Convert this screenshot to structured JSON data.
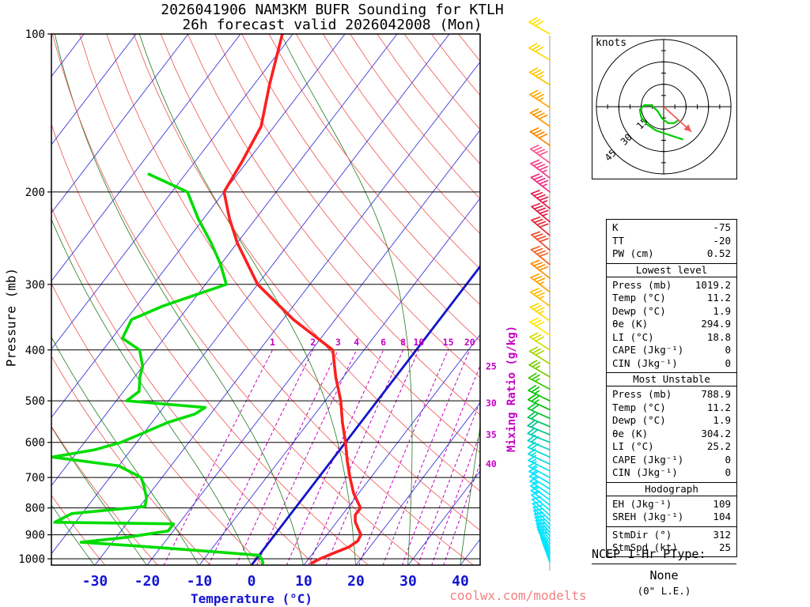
{
  "meta": {
    "model": "NAM3KM",
    "station": "KTLH",
    "init": "2026041906",
    "valid": "2026042008",
    "forecast_hour": "26h",
    "valid_day": "Mon"
  },
  "title": {
    "line1": "2026041906 NAM3KM BUFR Sounding for KTLH",
    "line2": "26h forecast valid 2026042008 (Mon)"
  },
  "axes": {
    "pressure_label": "Pressure (mb)",
    "temperature_label": "Temperature (°C)",
    "mixing_ratio_label": "Mixing Ratio (g/kg)",
    "pressure_ticks": [
      100,
      200,
      300,
      400,
      500,
      600,
      700,
      800,
      900,
      1000
    ],
    "temperature_ticks": [
      -30,
      -20,
      -10,
      0,
      10,
      20,
      30,
      40
    ]
  },
  "hodograph": {
    "units_label": "knots",
    "ring_labels": [
      15,
      30,
      45
    ]
  },
  "stats_panel": {
    "sections": [
      {
        "header": null,
        "rows": [
          [
            "K",
            "-75"
          ],
          [
            "TT",
            "-20"
          ],
          [
            "PW (cm)",
            "0.52"
          ]
        ]
      },
      {
        "header": "Lowest level",
        "rows": [
          [
            "Press (mb)",
            "1019.2"
          ],
          [
            "Temp (°C)",
            "11.2"
          ],
          [
            "Dewp (°C)",
            "1.9"
          ],
          [
            "θe (K)",
            "294.9"
          ],
          [
            "LI (°C)",
            "18.8"
          ],
          [
            "CAPE (Jkg⁻¹)",
            "0"
          ],
          [
            "CIN (Jkg⁻¹)",
            "0"
          ]
        ]
      },
      {
        "header": "Most Unstable",
        "rows": [
          [
            "Press (mb)",
            "788.9"
          ],
          [
            "Temp (°C)",
            "11.2"
          ],
          [
            "Dewp (°C)",
            "1.9"
          ],
          [
            "θe (K)",
            "304.2"
          ],
          [
            "LI (°C)",
            "25.2"
          ],
          [
            "CAPE (Jkg⁻¹)",
            "0"
          ],
          [
            "CIN (Jkg⁻¹)",
            "0"
          ]
        ]
      },
      {
        "header": "Hodograph",
        "rows": [
          [
            "EH (Jkg⁻¹)",
            "109"
          ],
          [
            "SREH (Jkg⁻¹)",
            "104"
          ]
        ]
      },
      {
        "header": null,
        "rows": [
          [
            "StmDir (°)",
            "312"
          ],
          [
            "StmSpd (kt)",
            "25"
          ]
        ]
      }
    ]
  },
  "ptype": {
    "heading": "NCEP 1-Hr PType:",
    "value": "None",
    "detail": "(0\" L.E.)"
  },
  "watermark": "coolwx.com/modelts",
  "chart_data": {
    "type": "line",
    "subtype": "skew-t log-p sounding",
    "pressure_axis_mb": [
      100,
      1050
    ],
    "temperature_axis_c": [
      -38,
      44
    ],
    "isotherm_step_c": 10,
    "dry_adiabat_theta_range_c": [
      -40,
      190,
      10
    ],
    "moist_adiabat_start_temps_c": [
      -30,
      -20,
      -10,
      0,
      10,
      20,
      30,
      40
    ],
    "mixing_ratio_lines_gkg": [
      1,
      2,
      3,
      4,
      6,
      8,
      10,
      15,
      20,
      25,
      30,
      35,
      40
    ],
    "temperature_profile_p_t": [
      [
        1019,
        11.2
      ],
      [
        1000,
        12.2
      ],
      [
        975,
        14
      ],
      [
        950,
        16
      ],
      [
        925,
        16.8
      ],
      [
        900,
        16.5
      ],
      [
        875,
        15
      ],
      [
        850,
        13.5
      ],
      [
        825,
        12.5
      ],
      [
        800,
        12.5
      ],
      [
        750,
        9
      ],
      [
        700,
        6
      ],
      [
        650,
        3
      ],
      [
        600,
        0
      ],
      [
        550,
        -3.5
      ],
      [
        500,
        -7
      ],
      [
        450,
        -11.5
      ],
      [
        400,
        -16
      ],
      [
        350,
        -28
      ],
      [
        300,
        -40
      ],
      [
        250,
        -50
      ],
      [
        225,
        -55
      ],
      [
        200,
        -60
      ],
      [
        175,
        -61
      ],
      [
        150,
        -62.5
      ],
      [
        125,
        -67
      ],
      [
        100,
        -72
      ]
    ],
    "dewpoint_profile_p_t": [
      [
        1019,
        1.9
      ],
      [
        1000,
        1.0
      ],
      [
        985,
        0.0
      ],
      [
        965,
        -12
      ],
      [
        945,
        -25
      ],
      [
        930,
        -36
      ],
      [
        910,
        -28
      ],
      [
        885,
        -21
      ],
      [
        858,
        -21
      ],
      [
        852,
        -44
      ],
      [
        820,
        -42
      ],
      [
        795,
        -29
      ],
      [
        765,
        -30
      ],
      [
        730,
        -32
      ],
      [
        700,
        -34
      ],
      [
        665,
        -40
      ],
      [
        640,
        -54
      ],
      [
        620,
        -47
      ],
      [
        600,
        -43
      ],
      [
        575,
        -40
      ],
      [
        550,
        -37
      ],
      [
        530,
        -33
      ],
      [
        515,
        -32
      ],
      [
        500,
        -48
      ],
      [
        480,
        -47
      ],
      [
        450,
        -49
      ],
      [
        430,
        -50
      ],
      [
        400,
        -53
      ],
      [
        380,
        -58
      ],
      [
        350,
        -59
      ],
      [
        330,
        -55
      ],
      [
        300,
        -46
      ],
      [
        275,
        -50
      ],
      [
        250,
        -55
      ],
      [
        225,
        -61
      ],
      [
        200,
        -67
      ],
      [
        185,
        -77
      ]
    ],
    "winds_order": [
      "pressure_mb",
      "dir_deg",
      "speed_kt",
      "color"
    ],
    "winds": [
      [
        100,
        300,
        30,
        "#ffe200"
      ],
      [
        112,
        300,
        30,
        "#ffd600"
      ],
      [
        125,
        302,
        35,
        "#ffc400"
      ],
      [
        138,
        303,
        35,
        "#ffaa00"
      ],
      [
        150,
        305,
        40,
        "#ff9600"
      ],
      [
        163,
        305,
        40,
        "#ff8800"
      ],
      [
        176,
        306,
        40,
        "#fb5a8d"
      ],
      [
        188,
        307,
        45,
        "#f4408a"
      ],
      [
        200,
        308,
        45,
        "#ee2d7d"
      ],
      [
        215,
        309,
        45,
        "#e11d48"
      ],
      [
        228,
        310,
        45,
        "#e11d48"
      ],
      [
        242,
        310,
        40,
        "#e52b33"
      ],
      [
        258,
        310,
        40,
        "#ef4a2a"
      ],
      [
        275,
        309,
        40,
        "#f66220"
      ],
      [
        292,
        308,
        40,
        "#ff8c00"
      ],
      [
        310,
        307,
        35,
        "#ffa200"
      ],
      [
        330,
        306,
        35,
        "#ffbc00"
      ],
      [
        352,
        305,
        35,
        "#ffd800"
      ],
      [
        375,
        304,
        30,
        "#ffe800"
      ],
      [
        400,
        303,
        30,
        "#d4e000"
      ],
      [
        425,
        302,
        30,
        "#a6d600"
      ],
      [
        450,
        300,
        25,
        "#78cc00"
      ],
      [
        475,
        298,
        25,
        "#3cc600"
      ],
      [
        500,
        296,
        25,
        "#00c400"
      ],
      [
        520,
        295,
        25,
        "#00c400"
      ],
      [
        540,
        294,
        20,
        "#00c42e"
      ],
      [
        560,
        293,
        20,
        "#00c45c"
      ],
      [
        580,
        292,
        20,
        "#00c88e"
      ],
      [
        600,
        292,
        20,
        "#00ccaa"
      ],
      [
        620,
        293,
        18,
        "#00d2c2"
      ],
      [
        640,
        294,
        18,
        "#00d8d2"
      ],
      [
        660,
        295,
        15,
        "#00dce2"
      ],
      [
        680,
        296,
        15,
        "#00e0ee"
      ],
      [
        700,
        298,
        15,
        "#00e4f8"
      ],
      [
        718,
        300,
        15,
        "#00e5ff"
      ],
      [
        736,
        302,
        15,
        "#00e5ff"
      ],
      [
        754,
        304,
        15,
        "#00e5ff"
      ],
      [
        772,
        306,
        15,
        "#00e5ff"
      ],
      [
        790,
        308,
        15,
        "#00e5ff"
      ],
      [
        808,
        310,
        12,
        "#00e5ff"
      ],
      [
        826,
        312,
        12,
        "#00e5ff"
      ],
      [
        844,
        314,
        12,
        "#00e5ff"
      ],
      [
        860,
        316,
        10,
        "#00e5ff"
      ],
      [
        875,
        318,
        10,
        "#00e5ff"
      ],
      [
        890,
        320,
        10,
        "#00e5ff"
      ],
      [
        905,
        322,
        10,
        "#00e5ff"
      ],
      [
        920,
        324,
        10,
        "#00e5ff"
      ],
      [
        935,
        326,
        10,
        "#00e5ff"
      ],
      [
        950,
        328,
        10,
        "#00e5ff"
      ],
      [
        963,
        330,
        8,
        "#00e5ff"
      ],
      [
        976,
        333,
        8,
        "#00e5ff"
      ],
      [
        989,
        336,
        5,
        "#00e5ff"
      ],
      [
        1002,
        338,
        5,
        "#00e5ff"
      ],
      [
        1015,
        340,
        5,
        "#00e5ff"
      ]
    ],
    "hodograph_trace_uv_kt": [
      [
        13,
        -22
      ],
      [
        7,
        -20
      ],
      [
        1,
        -18
      ],
      [
        -5,
        -16
      ],
      [
        -11,
        -12
      ],
      [
        -15,
        -7
      ],
      [
        -16,
        -2
      ],
      [
        -13,
        1
      ],
      [
        -8,
        1
      ],
      [
        -4,
        -3
      ],
      [
        -1,
        -8
      ],
      [
        3,
        -11
      ],
      [
        7,
        -11
      ],
      [
        10,
        -9
      ]
    ],
    "storm_motion": {
      "dir_deg": 312,
      "speed_kt": 25
    },
    "colors": {
      "isotherm": "#3a3ad6",
      "zero_isotherm": "#1414cc",
      "dry_adiabat": "#ef5350",
      "moist_adiabat": "#1f7a1f",
      "mixing_ratio": "#c400c4",
      "pressure_line": "#000000",
      "temperature_curve": "#fb2020",
      "dewpoint_curve": "#00dc00",
      "axis_temp": "#1414d2",
      "hodograph_trace": "#00cc00",
      "storm_arrow": "#ef5a5a",
      "watermark": "#f58080"
    }
  }
}
